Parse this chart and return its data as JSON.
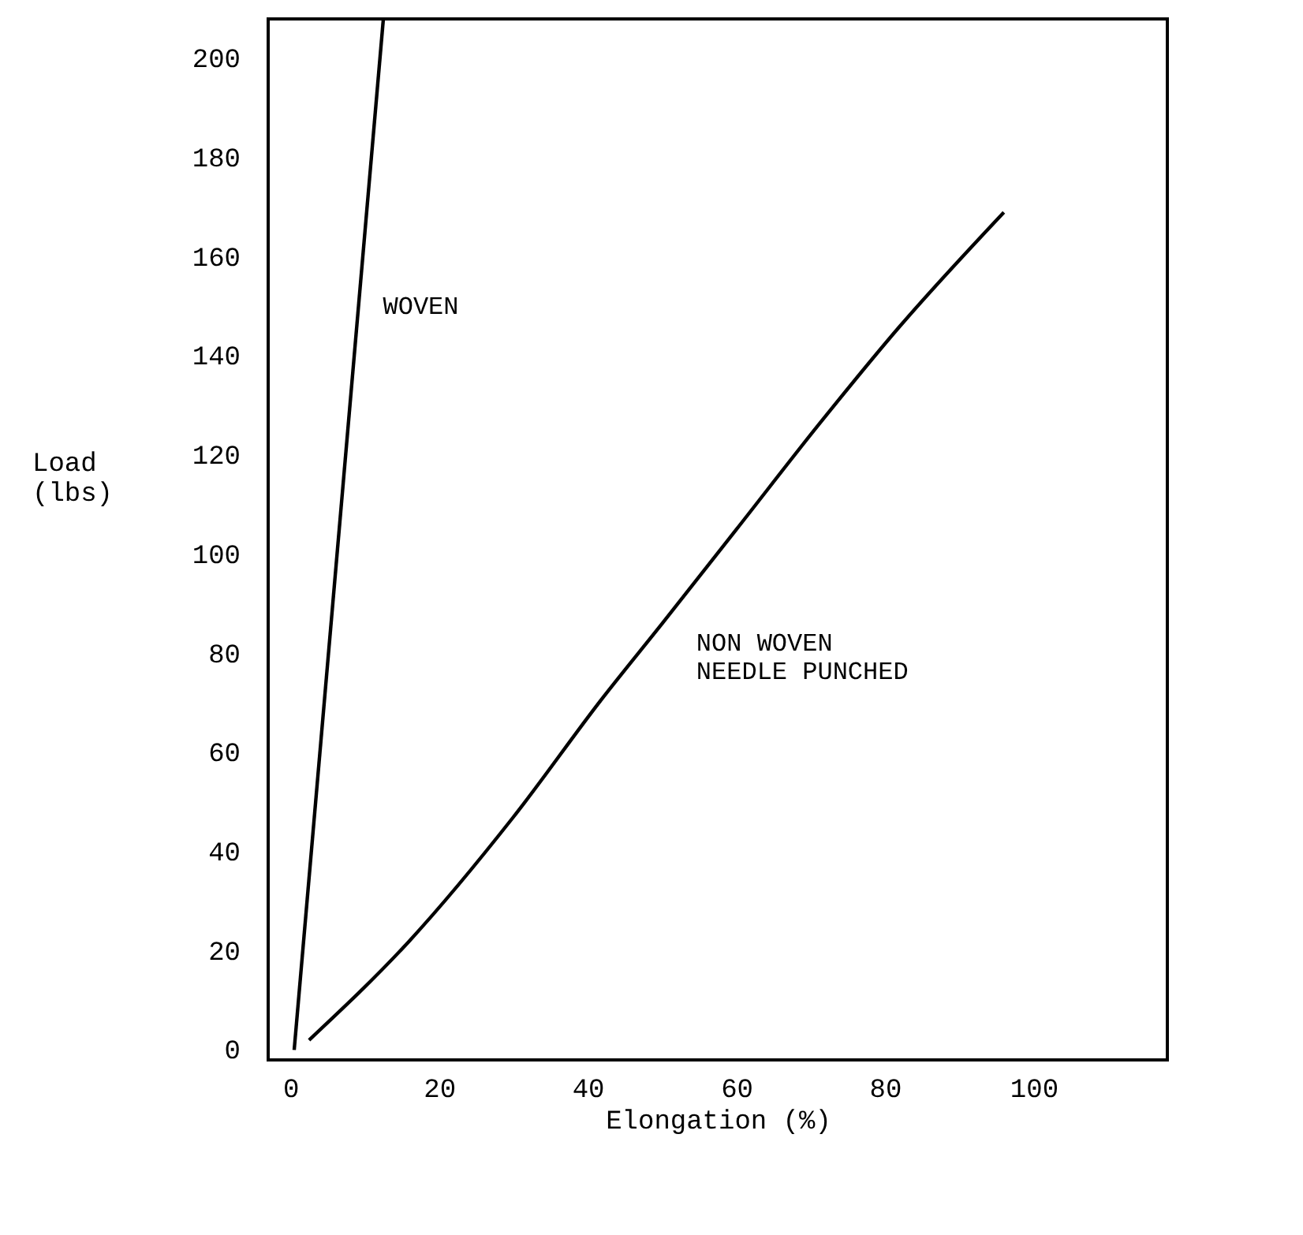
{
  "chart_data": {
    "type": "line",
    "xlabel": "Elongation (%)",
    "ylabel": "Load\n(lbs)",
    "xlim": [
      -3,
      118
    ],
    "ylim": [
      -2,
      208
    ],
    "xticks": [
      0,
      20,
      40,
      60,
      80,
      100
    ],
    "yticks": [
      0,
      20,
      40,
      60,
      80,
      100,
      120,
      140,
      160,
      180,
      200
    ],
    "grid": false,
    "marker": "none",
    "line_style": "solid",
    "series": [
      {
        "name": "WOVEN",
        "color": "#000000",
        "x": [
          0.5,
          12.5
        ],
        "values": [
          0,
          208
        ]
      },
      {
        "name": "NON WOVEN\nNEEDLE PUNCHED",
        "color": "#000000",
        "x": [
          2.5,
          16,
          30,
          42,
          50,
          60,
          71,
          82,
          96
        ],
        "values": [
          2,
          22,
          47,
          71,
          86,
          105,
          126,
          146,
          169
        ]
      }
    ]
  }
}
